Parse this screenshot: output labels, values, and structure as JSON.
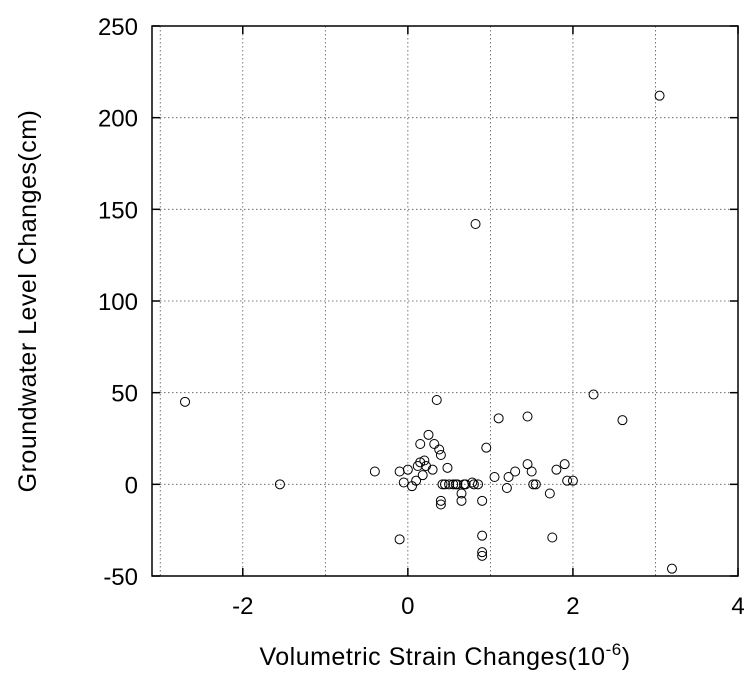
{
  "chart_data": {
    "type": "scatter",
    "title": "",
    "xlabel_main": "Volumetric  Strain  Changes(10",
    "xlabel_exp": "-6",
    "xlabel_close": ")",
    "ylabel": "Groundwater  Level  Changes(cm)",
    "xlim": [
      -3.1,
      4
    ],
    "ylim": [
      -50,
      250
    ],
    "xticks": [
      -2,
      0,
      2,
      4
    ],
    "yticks": [
      -50,
      0,
      50,
      100,
      150,
      200,
      250
    ],
    "xtick_labels": [
      "-2",
      "0",
      "2",
      "4"
    ],
    "ytick_labels": [
      "-50",
      "0",
      "50",
      "100",
      "150",
      "200",
      "250"
    ],
    "grid": true,
    "points": [
      [
        -2.7,
        45
      ],
      [
        -1.55,
        0
      ],
      [
        -0.4,
        7
      ],
      [
        -0.1,
        7
      ],
      [
        -0.1,
        -30
      ],
      [
        -0.05,
        1
      ],
      [
        0.0,
        8
      ],
      [
        0.05,
        -1
      ],
      [
        0.1,
        2
      ],
      [
        0.12,
        10
      ],
      [
        0.15,
        12
      ],
      [
        0.15,
        22
      ],
      [
        0.18,
        5
      ],
      [
        0.2,
        13
      ],
      [
        0.22,
        10
      ],
      [
        0.25,
        27
      ],
      [
        0.3,
        8
      ],
      [
        0.32,
        22
      ],
      [
        0.35,
        46
      ],
      [
        0.38,
        19
      ],
      [
        0.4,
        16
      ],
      [
        0.4,
        -9
      ],
      [
        0.4,
        -11
      ],
      [
        0.42,
        0
      ],
      [
        0.45,
        0
      ],
      [
        0.48,
        9
      ],
      [
        0.5,
        0
      ],
      [
        0.55,
        0
      ],
      [
        0.58,
        0
      ],
      [
        0.6,
        0
      ],
      [
        0.65,
        -5
      ],
      [
        0.65,
        -9
      ],
      [
        0.68,
        0
      ],
      [
        0.7,
        0
      ],
      [
        0.78,
        1
      ],
      [
        0.8,
        0
      ],
      [
        0.82,
        142
      ],
      [
        0.85,
        0
      ],
      [
        0.9,
        -9
      ],
      [
        0.9,
        -28
      ],
      [
        0.9,
        -37
      ],
      [
        0.9,
        -39
      ],
      [
        0.95,
        20
      ],
      [
        1.05,
        4
      ],
      [
        1.1,
        36
      ],
      [
        1.2,
        -2
      ],
      [
        1.22,
        4
      ],
      [
        1.3,
        7
      ],
      [
        1.45,
        37
      ],
      [
        1.45,
        11
      ],
      [
        1.5,
        7
      ],
      [
        1.52,
        0
      ],
      [
        1.55,
        0
      ],
      [
        1.72,
        -5
      ],
      [
        1.75,
        -29
      ],
      [
        1.8,
        8
      ],
      [
        1.9,
        11
      ],
      [
        1.93,
        2
      ],
      [
        2.0,
        2
      ],
      [
        2.25,
        49
      ],
      [
        2.6,
        35
      ],
      [
        3.05,
        212
      ],
      [
        3.2,
        -46
      ]
    ]
  }
}
